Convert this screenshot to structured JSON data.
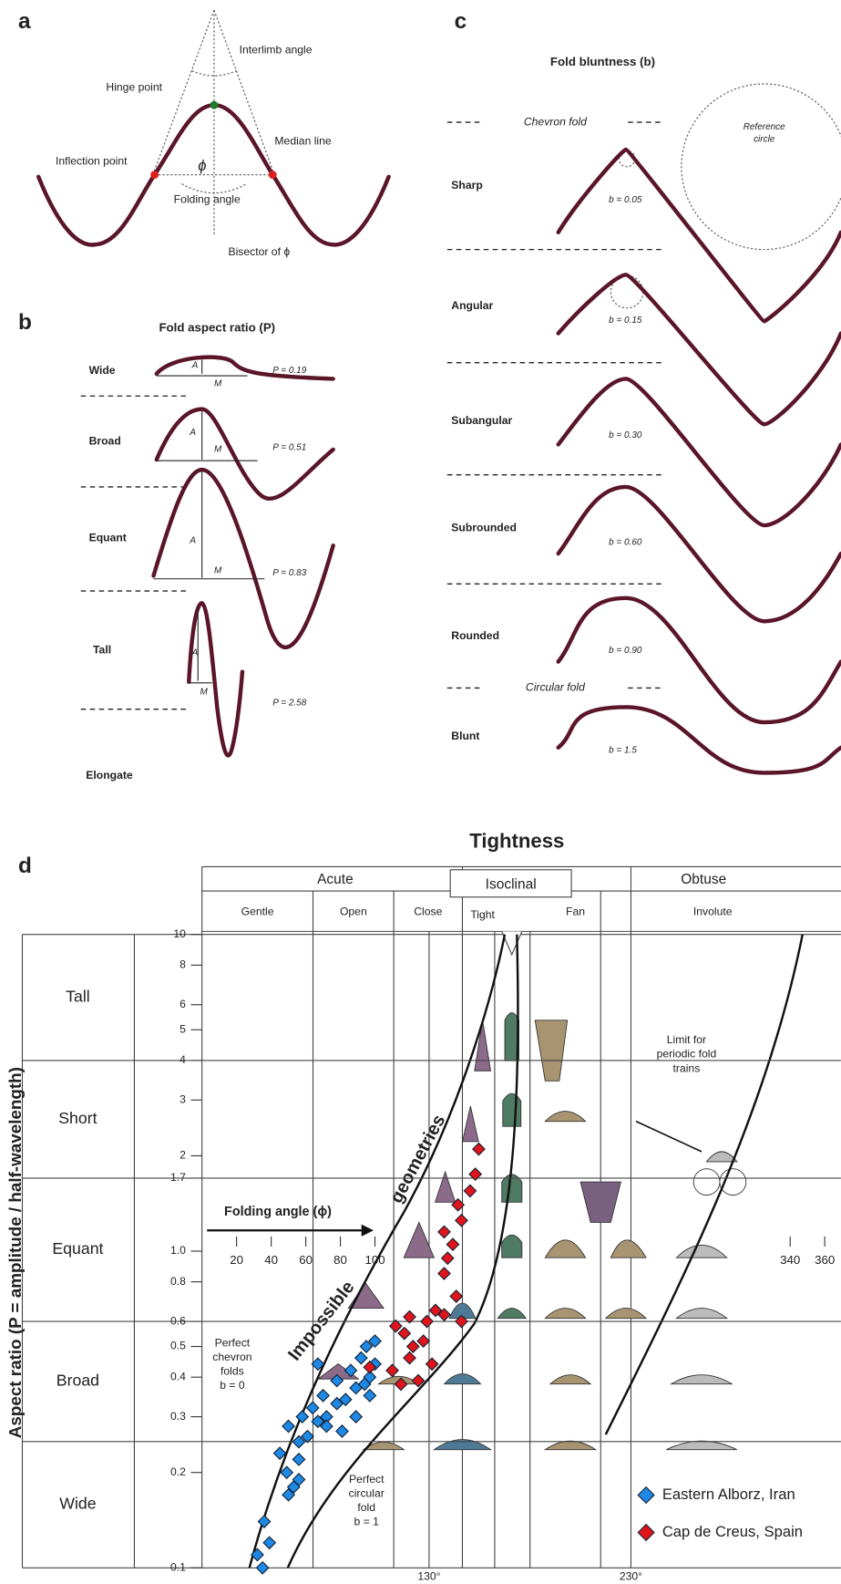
{
  "panel_a": {
    "label": "a",
    "hinge_point": "Hinge point",
    "interlimb_angle": "Interlimb angle",
    "median_line": "Median line",
    "inflection_point": "Inflection point",
    "phi": "ϕ",
    "folding_angle": "Folding angle",
    "bisector": "Bisector of ϕ"
  },
  "panel_b": {
    "label": "b",
    "title": "Fold aspect ratio (P)",
    "amplitude": "A",
    "half_wavelength": "M",
    "rows": [
      {
        "name": "Wide",
        "p": "P = 0.19"
      },
      {
        "name": "Broad",
        "p": "P = 0.51"
      },
      {
        "name": "Equant",
        "p": "P = 0.83"
      },
      {
        "name": "Tall",
        "p": "P = 2.58"
      },
      {
        "name": "Elongate"
      }
    ]
  },
  "panel_c": {
    "label": "c",
    "title": "Fold bluntness (b)",
    "chevron_fold": "Chevron fold",
    "circular_fold": "Circular fold",
    "reference_circle": [
      "Reference",
      "circle"
    ],
    "rows": [
      {
        "name": "Sharp",
        "b": "b = 0.05"
      },
      {
        "name": "Angular",
        "b": "b = 0.15"
      },
      {
        "name": "Subangular",
        "b": "b = 0.30"
      },
      {
        "name": "Subrounded",
        "b": "b = 0.60"
      },
      {
        "name": "Rounded",
        "b": "b = 0.90"
      },
      {
        "name": "Blunt",
        "b": "b = 1.5"
      }
    ]
  },
  "chart_data": {
    "type": "scatter",
    "label": "d",
    "title": "Tightness",
    "y_label": "Aspect ratio (P = amplitude / half-wavelength)",
    "x_label": "Folding angle (ϕ)",
    "classes": {
      "acute": "Acute",
      "isoclinal": "Isoclinal",
      "obtuse": "Obtuse",
      "subclasses": [
        "Gentle",
        "Open",
        "Close",
        "Tight",
        "Fan",
        "Involute"
      ]
    },
    "row_labels": [
      "Tall",
      "Short",
      "Equant",
      "Broad",
      "Wide"
    ],
    "annotations": {
      "impossible": "Impossible",
      "geometries": "geometries",
      "chevron": [
        "Perfect",
        "chevron",
        "folds",
        "b = 0"
      ],
      "circular": [
        "Perfect",
        "circular",
        "fold",
        "b = 1"
      ],
      "limit": [
        "Limit for",
        "periodic fold",
        "trains"
      ]
    },
    "angle_labels": [
      "130°",
      "230°"
    ],
    "ylog": true,
    "ylim": [
      0.1,
      10
    ],
    "yticks": [
      10,
      8,
      6,
      5,
      4,
      3,
      2,
      1.7,
      {
        "value": 1,
        "label": "1.0"
      },
      0.8,
      0.6,
      0.5,
      0.4,
      0.3,
      0.2,
      0.1
    ],
    "xlim": [
      0,
      360
    ],
    "xticks": [
      20,
      40,
      60,
      80,
      100,
      340,
      360
    ],
    "legend": "lower right",
    "series": [
      {
        "name": "Eastern Alborz, Iran",
        "color": "#1e88e5",
        "x": [
          35,
          32,
          39,
          36,
          50,
          53,
          49,
          56,
          45,
          56,
          61,
          50,
          67,
          58,
          72,
          64,
          78,
          70,
          83,
          89,
          78,
          94,
          97,
          86,
          100,
          92,
          67,
          72,
          81,
          89,
          97,
          56,
          100,
          95
        ],
        "values": [
          0.1,
          0.11,
          0.12,
          0.14,
          0.17,
          0.18,
          0.2,
          0.22,
          0.23,
          0.25,
          0.26,
          0.28,
          0.29,
          0.3,
          0.3,
          0.32,
          0.33,
          0.35,
          0.34,
          0.37,
          0.39,
          0.38,
          0.4,
          0.42,
          0.44,
          0.46,
          0.44,
          0.28,
          0.27,
          0.3,
          0.35,
          0.19,
          0.52,
          0.5
        ]
      },
      {
        "name": "Cap de Creus, Spain",
        "color": "#e0141b",
        "x": [
          97,
          120,
          115,
          125,
          112,
          117,
          122,
          128,
          130,
          135,
          140,
          147,
          140,
          142,
          145,
          140,
          150,
          148,
          155,
          158,
          160,
          150,
          110,
          133,
          120
        ],
        "values": [
          0.43,
          0.46,
          0.38,
          0.39,
          0.58,
          0.55,
          0.5,
          0.52,
          0.6,
          0.65,
          0.63,
          0.72,
          0.85,
          0.95,
          1.05,
          1.15,
          1.25,
          1.4,
          1.55,
          1.75,
          2.1,
          0.6,
          0.42,
          0.44,
          0.62
        ]
      }
    ]
  }
}
